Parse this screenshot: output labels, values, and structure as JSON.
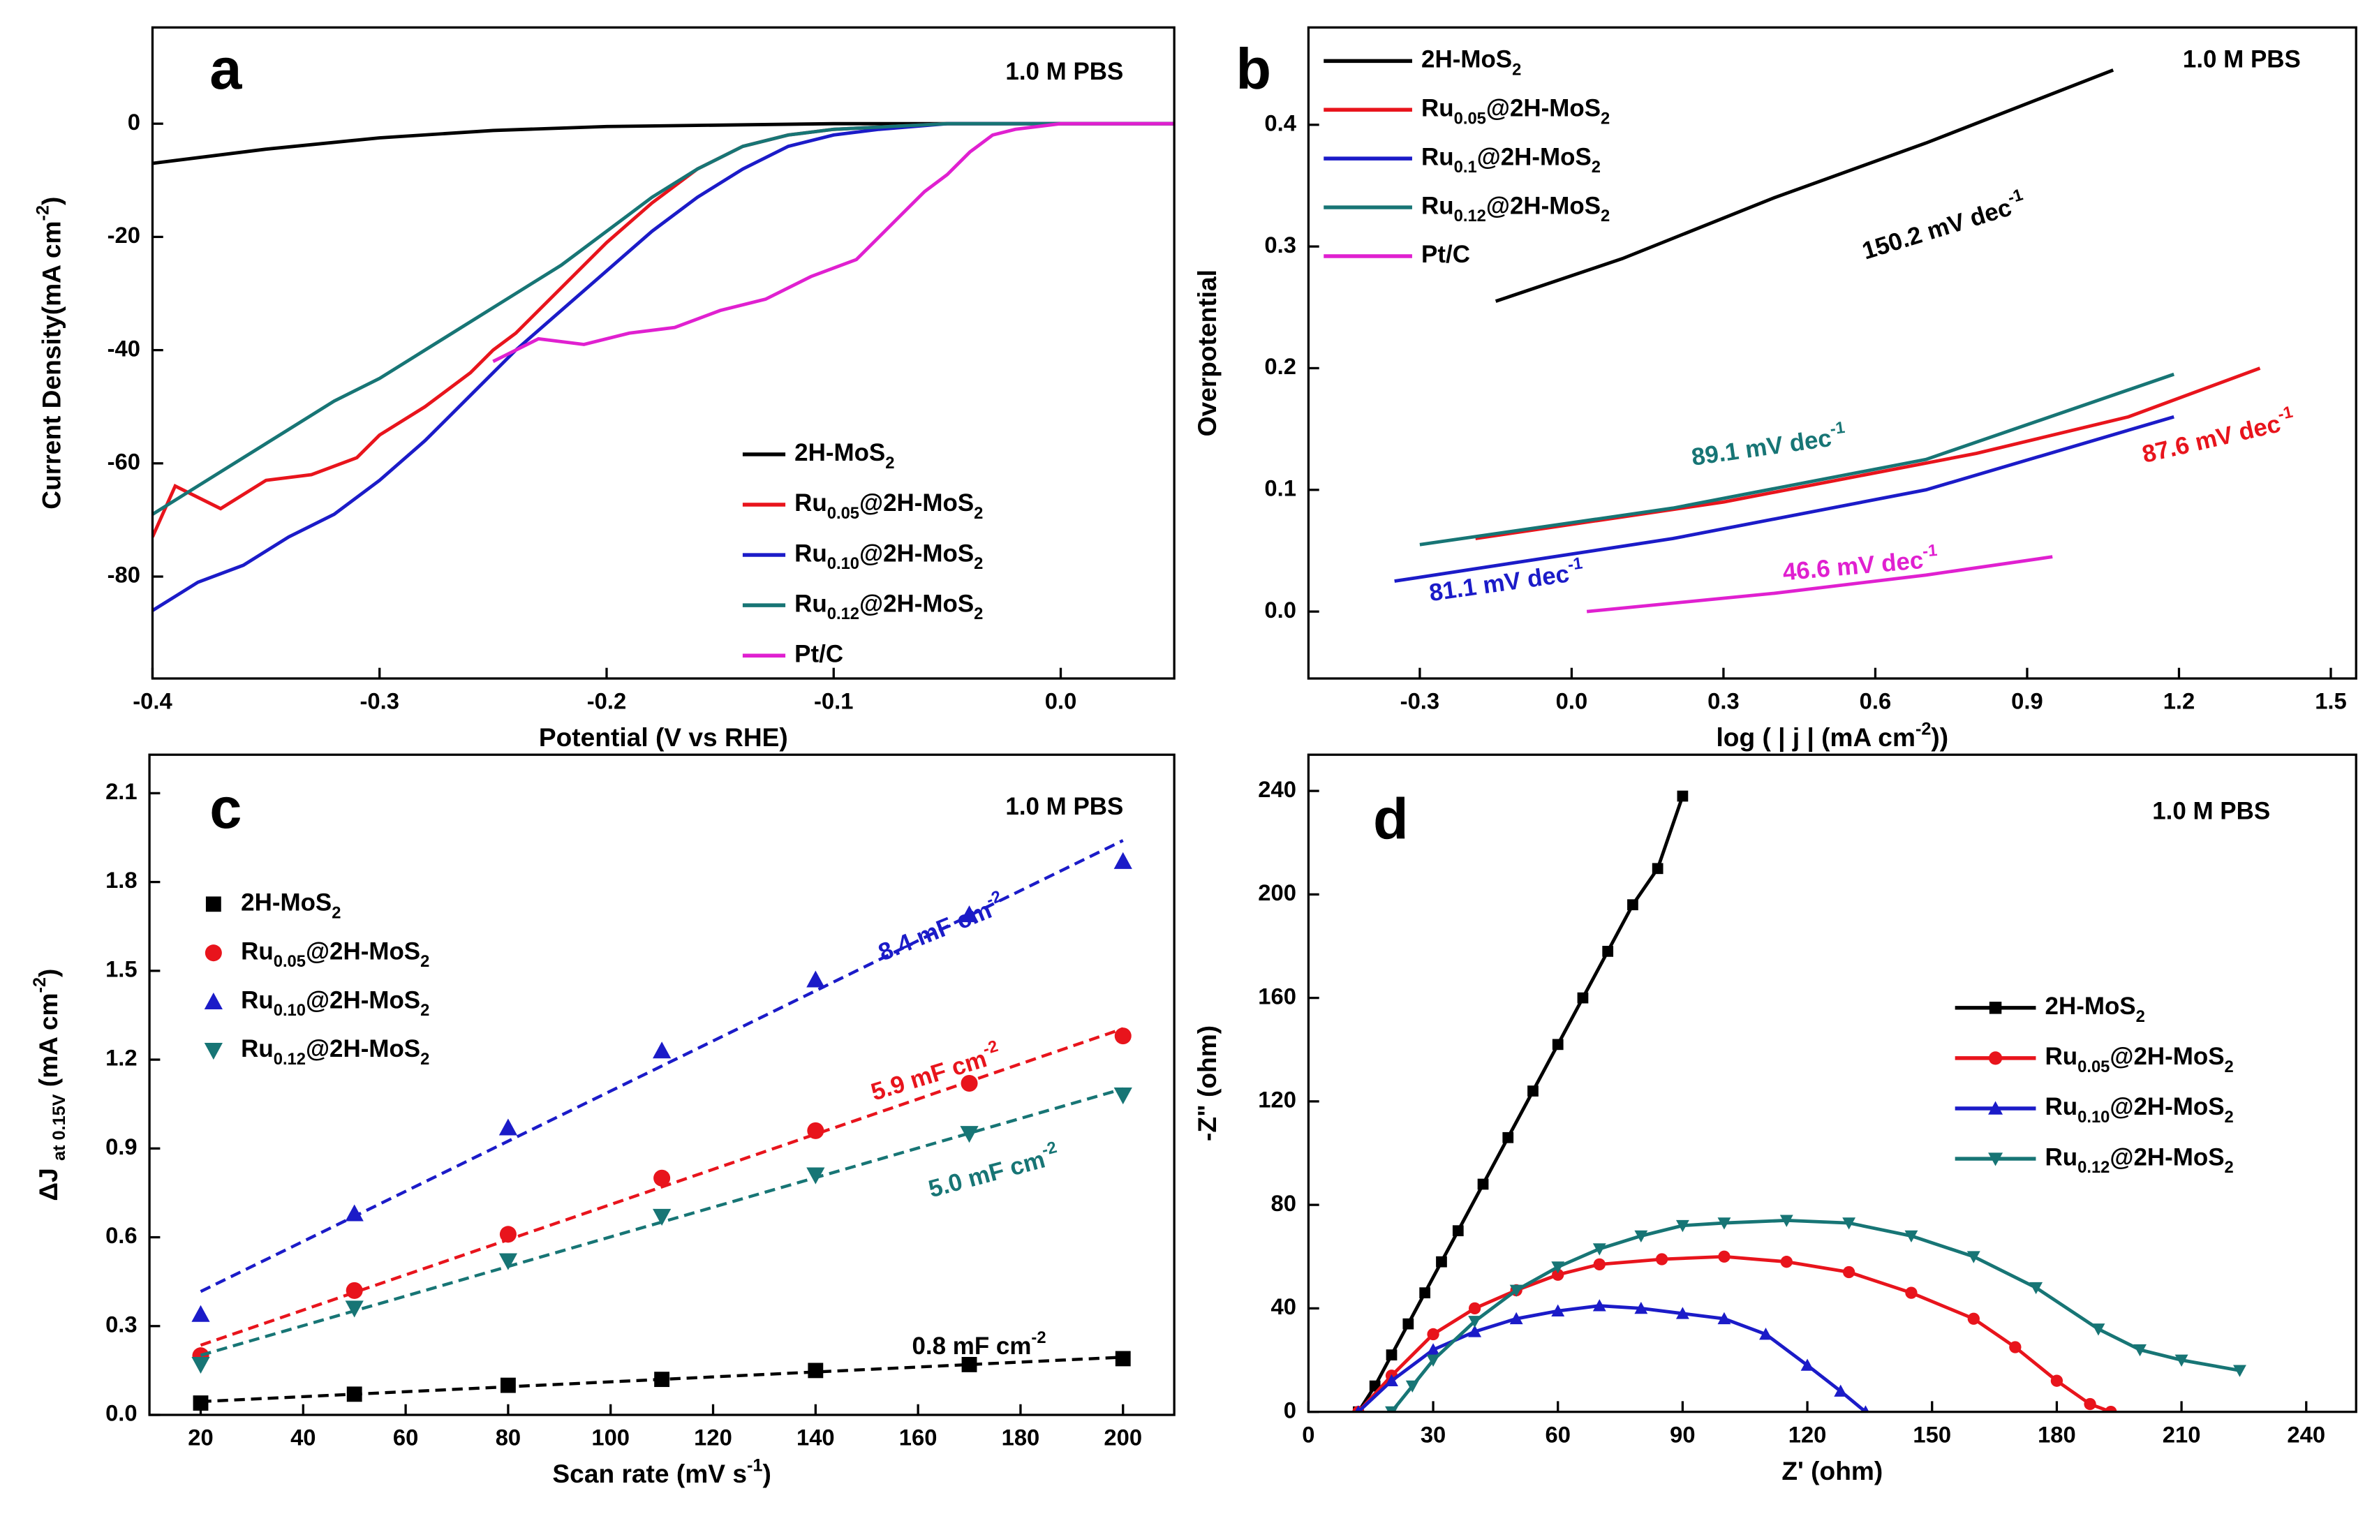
{
  "chart_data": [
    {
      "type": "line",
      "panel_label": "a",
      "xlabel": "Potential (V vs RHE)",
      "ylabel": "Current Density(mA cm-2)",
      "xlim": [
        -0.4,
        0.05
      ],
      "ylim": [
        -98,
        17
      ],
      "xticks": [
        -0.4,
        -0.3,
        -0.2,
        -0.1,
        {
          "value": 0,
          "label": "0.0"
        }
      ],
      "yticks": [
        0,
        -20,
        -40,
        -60,
        -80
      ],
      "legend": "lower right",
      "annotations": [
        {
          "text": "1.0 M PBS",
          "color": "#000000"
        }
      ],
      "series": [
        {
          "name": "2H-MoS2",
          "color": "#000000",
          "x": [
            -0.4,
            -0.35,
            -0.3,
            -0.25,
            -0.2,
            -0.1,
            0.05
          ],
          "values": [
            -7,
            -4.5,
            -2.5,
            -1.2,
            -0.5,
            0,
            0
          ]
        },
        {
          "name": "Ru0.05@2H-MoS2",
          "color": "#e8141c",
          "x": [
            -0.4,
            -0.39,
            -0.37,
            -0.35,
            -0.33,
            -0.31,
            -0.3,
            -0.28,
            -0.26,
            -0.25,
            -0.24,
            -0.22,
            -0.2,
            -0.18,
            -0.16,
            -0.14,
            -0.12,
            -0.1,
            -0.05,
            0.05
          ],
          "values": [
            -73,
            -64,
            -68,
            -63,
            -62,
            -59,
            -55,
            -50,
            -44,
            -40,
            -37,
            -29,
            -21,
            -14,
            -8,
            -4,
            -2,
            -1,
            0,
            0
          ]
        },
        {
          "name": "Ru0.10@2H-MoS2",
          "color": "#1b1bc8",
          "x": [
            -0.4,
            -0.38,
            -0.36,
            -0.34,
            -0.32,
            -0.3,
            -0.28,
            -0.26,
            -0.24,
            -0.22,
            -0.2,
            -0.18,
            -0.16,
            -0.14,
            -0.12,
            -0.1,
            -0.08,
            -0.05,
            0.05
          ],
          "values": [
            -86,
            -81,
            -78,
            -73,
            -69,
            -63,
            -56,
            -48,
            -40,
            -33,
            -26,
            -19,
            -13,
            -8,
            -4,
            -2,
            -1,
            0,
            0
          ]
        },
        {
          "name": "Ru0.12@2H-MoS2",
          "color": "#177575",
          "x": [
            -0.4,
            -0.38,
            -0.36,
            -0.34,
            -0.32,
            -0.3,
            -0.28,
            -0.26,
            -0.24,
            -0.22,
            -0.2,
            -0.18,
            -0.16,
            -0.14,
            -0.12,
            -0.1,
            -0.05,
            0.05
          ],
          "values": [
            -69,
            -64,
            -59,
            -54,
            -49,
            -45,
            -40,
            -35,
            -30,
            -25,
            -19,
            -13,
            -8,
            -4,
            -2,
            -1,
            0,
            0
          ]
        },
        {
          "name": "Pt/C",
          "color": "#e020d0",
          "x": [
            -0.25,
            -0.23,
            -0.21,
            -0.19,
            -0.17,
            -0.15,
            -0.13,
            -0.11,
            -0.09,
            -0.08,
            -0.07,
            -0.06,
            -0.05,
            -0.04,
            -0.03,
            -0.02,
            0,
            0.05
          ],
          "values": [
            -42,
            -38,
            -39,
            -37,
            -36,
            -33,
            -31,
            -27,
            -24,
            -20,
            -16,
            -12,
            -9,
            -5,
            -2,
            -1,
            0,
            0
          ]
        }
      ]
    },
    {
      "type": "line",
      "panel_label": "b",
      "xlabel": "log ( | j | (mA cm-2))",
      "ylabel": "Overpotential",
      "xlim": [
        -0.52,
        1.55
      ],
      "ylim": [
        -0.055,
        0.48
      ],
      "xticks": [
        -0.3,
        {
          "value": 0,
          "label": "0.0"
        },
        0.3,
        0.6,
        0.9,
        1.2,
        1.5
      ],
      "yticks": [
        {
          "value": 0,
          "label": "0.0"
        },
        0.1,
        0.2,
        0.3,
        0.4
      ],
      "legend": "upper left",
      "annotations": [
        {
          "text": "1.0 M PBS",
          "color": "#000000"
        },
        {
          "text": "150.2 mV dec-1",
          "color": "#000000"
        },
        {
          "text": "89.1 mV dec-1",
          "color": "#177575"
        },
        {
          "text": "87.6 mV dec-1",
          "color": "#e8141c"
        },
        {
          "text": "81.1 mV dec-1",
          "color": "#1b1bc8"
        },
        {
          "text": "46.6 mV dec-1",
          "color": "#e020d0"
        }
      ],
      "series": [
        {
          "name": "2H-MoS2",
          "color": "#000000",
          "x": [
            -0.15,
            0.1,
            0.4,
            0.7,
            1.07
          ],
          "values": [
            0.255,
            0.29,
            0.34,
            0.385,
            0.445
          ]
        },
        {
          "name": "Ru0.05@2H-MoS2",
          "color": "#e8141c",
          "x": [
            -0.19,
            0.3,
            0.8,
            1.1,
            1.36
          ],
          "values": [
            0.06,
            0.09,
            0.13,
            0.16,
            0.2
          ]
        },
        {
          "name": "Ru0.1@2H-MoS2",
          "color": "#1b1bc8",
          "x": [
            -0.35,
            0.2,
            0.7,
            1.19
          ],
          "values": [
            0.025,
            0.06,
            0.1,
            0.16
          ]
        },
        {
          "name": "Ru0.12@2H-MoS2",
          "color": "#177575",
          "x": [
            -0.3,
            0.2,
            0.7,
            1.19
          ],
          "values": [
            0.055,
            0.085,
            0.125,
            0.195
          ]
        },
        {
          "name": "Pt/C",
          "color": "#e020d0",
          "x": [
            0.03,
            0.4,
            0.7,
            0.95
          ],
          "values": [
            0,
            0.015,
            0.03,
            0.045
          ]
        }
      ]
    },
    {
      "type": "scatter",
      "panel_label": "c",
      "fit_lines": true,
      "xlabel": "Scan rate (mV s-1)",
      "ylabel": "ΔJ at 0.15V (mA cm-2)",
      "xlim": [
        10,
        210
      ],
      "ylim": [
        0,
        2.23
      ],
      "xticks": [
        20,
        40,
        60,
        80,
        100,
        120,
        140,
        160,
        180,
        200
      ],
      "yticks": [
        {
          "value": 0,
          "label": "0.0"
        },
        0.3,
        0.6,
        0.9,
        1.2,
        1.5,
        1.8,
        2.1
      ],
      "legend": "upper left",
      "annotations": [
        {
          "text": "1.0 M PBS",
          "color": "#000000"
        },
        {
          "text": "8.4 mF cm-2",
          "color": "#1b1bc8"
        },
        {
          "text": "5.9 mF cm-2",
          "color": "#e8141c"
        },
        {
          "text": "5.0 mF cm-2",
          "color": "#177575"
        },
        {
          "text": "0.8 mF cm-2",
          "color": "#000000"
        }
      ],
      "x": [
        20,
        50,
        80,
        110,
        140,
        170,
        200
      ],
      "series": [
        {
          "name": "2H-MoS2",
          "color": "#000000",
          "marker": "square",
          "values": [
            0.04,
            0.07,
            0.1,
            0.12,
            0.15,
            0.17,
            0.19
          ]
        },
        {
          "name": "Ru0.05@2H-MoS2",
          "color": "#e8141c",
          "marker": "circle",
          "values": [
            0.2,
            0.42,
            0.61,
            0.8,
            0.96,
            1.12,
            1.28
          ]
        },
        {
          "name": "Ru0.10@2H-MoS2",
          "color": "#1b1bc8",
          "marker": "triangle-up",
          "values": [
            0.34,
            0.68,
            0.97,
            1.23,
            1.47,
            1.69,
            1.87
          ]
        },
        {
          "name": "Ru0.12@2H-MoS2",
          "color": "#177575",
          "marker": "triangle-down",
          "values": [
            0.17,
            0.36,
            0.52,
            0.67,
            0.81,
            0.95,
            1.08
          ]
        }
      ]
    },
    {
      "type": "line",
      "panel_label": "d",
      "xlabel": "Z' (ohm)",
      "ylabel": "-Z\" (ohm)",
      "xlim": [
        0,
        252
      ],
      "ylim": [
        0,
        254
      ],
      "xticks": [
        0,
        30,
        60,
        90,
        120,
        150,
        180,
        210,
        240
      ],
      "yticks": [
        0,
        40,
        80,
        120,
        160,
        200,
        240
      ],
      "legend": "right",
      "annotations": [
        {
          "text": "1.0 M PBS",
          "color": "#000000"
        }
      ],
      "series": [
        {
          "name": "2H-MoS2",
          "color": "#000000",
          "marker": "square",
          "x": [
            12,
            16,
            20,
            24,
            28,
            32,
            36,
            42,
            48,
            54,
            60,
            66,
            72,
            78,
            84,
            90
          ],
          "values": [
            0,
            10,
            22,
            34,
            46,
            58,
            70,
            88,
            106,
            124,
            142,
            160,
            178,
            196,
            210,
            238
          ]
        },
        {
          "name": "Ru0.05@2H-MoS2",
          "color": "#e8141c",
          "marker": "circle",
          "x": [
            12,
            20,
            30,
            40,
            50,
            60,
            70,
            85,
            100,
            115,
            130,
            145,
            160,
            170,
            180,
            188,
            193
          ],
          "values": [
            0,
            14,
            30,
            40,
            47,
            53,
            57,
            59,
            60,
            58,
            54,
            46,
            36,
            25,
            12,
            3,
            0
          ]
        },
        {
          "name": "Ru0.10@2H-MoS2",
          "color": "#1b1bc8",
          "marker": "triangle-up",
          "x": [
            12,
            20,
            30,
            40,
            50,
            60,
            70,
            80,
            90,
            100,
            110,
            120,
            128,
            134
          ],
          "values": [
            0,
            12,
            24,
            31,
            36,
            39,
            41,
            40,
            38,
            36,
            30,
            18,
            8,
            0
          ]
        },
        {
          "name": "Ru0.12@2H-MoS2",
          "color": "#177575",
          "marker": "triangle-down",
          "x": [
            20,
            25,
            30,
            40,
            50,
            60,
            70,
            80,
            90,
            100,
            115,
            130,
            145,
            160,
            175,
            190,
            200,
            210,
            224
          ],
          "values": [
            0,
            10,
            20,
            35,
            47,
            56,
            63,
            68,
            72,
            73,
            74,
            73,
            68,
            60,
            48,
            32,
            24,
            20,
            16
          ]
        }
      ]
    }
  ]
}
